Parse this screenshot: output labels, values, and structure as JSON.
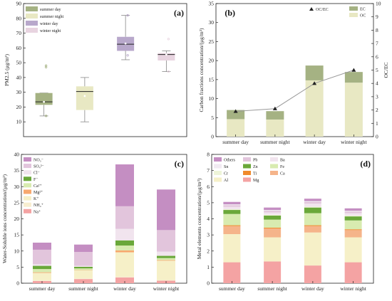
{
  "chart_data": [
    {
      "panel": "(a)",
      "type": "box",
      "ylabel": "PM2.5 (μg/m³)",
      "ylim": [
        0,
        90
      ],
      "yticks": [
        10,
        20,
        30,
        40,
        50,
        60,
        70,
        80,
        90
      ],
      "legend_position": "top-left",
      "groups": [
        {
          "name": "summer day",
          "color": "#a5b283",
          "min": 14,
          "q1": 21.5,
          "median": 23.5,
          "q3": 29.5,
          "max": 29.5,
          "mean": 23.5,
          "outliers": [
            48,
            47,
            14
          ]
        },
        {
          "name": "summer night",
          "color": "#e8e8c3",
          "min": 10,
          "q1": 18,
          "median": 30.5,
          "q3": 34,
          "max": 40,
          "mean": 27.5,
          "outliers": []
        },
        {
          "name": "winter day",
          "color": "#b8a8cb",
          "min": 52,
          "q1": 58,
          "median": 62.5,
          "q3": 67.5,
          "max": 82,
          "mean": 63,
          "outliers": [
            82,
            55
          ]
        },
        {
          "name": "winter night",
          "color": "#e8d4e0",
          "min": 44,
          "q1": 51.5,
          "median": 55.5,
          "q3": 56.5,
          "max": 58,
          "mean": 55.5,
          "outliers": [
            66,
            44
          ]
        }
      ]
    },
    {
      "panel": "(b)",
      "type": "stacked-bar-line",
      "categories": [
        "summer day",
        "summer night",
        "winter day",
        "winter night"
      ],
      "ylabel": "Carbon fractions concentration/(μg/m³)",
      "y2label": "OC/EC",
      "ylim": [
        0,
        35
      ],
      "yticks": [
        0,
        5,
        10,
        15,
        20,
        25,
        30,
        35
      ],
      "y2lim": [
        0,
        10
      ],
      "y2ticks": [
        0,
        1,
        2,
        3,
        4,
        5,
        6,
        7,
        8,
        9,
        10
      ],
      "series": [
        {
          "name": "OC",
          "color": "#e8e8c3",
          "values": [
            4.6,
            4.5,
            14.8,
            14.2
          ]
        },
        {
          "name": "EC",
          "color": "#a5b283",
          "values": [
            2.4,
            2.2,
            3.9,
            2.8
          ]
        }
      ],
      "line": {
        "name": "OC/EC",
        "values": [
          1.9,
          2.1,
          4.0,
          5.0
        ]
      },
      "legend_position": "top-right"
    },
    {
      "panel": "(c)",
      "type": "stacked-bar",
      "categories": [
        "summer day",
        "summer night",
        "winter day",
        "winter night"
      ],
      "ylabel": "Water-Soluble ions concentration/(μg/m³)",
      "ylim": [
        0,
        40
      ],
      "yticks": [
        0,
        5,
        10,
        15,
        20,
        25,
        30,
        35,
        40
      ],
      "legend_position": "top-left",
      "series": [
        {
          "name": "Na⁺",
          "color": "#f4a3a3",
          "values": [
            0.7,
            1.3,
            1.8,
            0.8
          ]
        },
        {
          "name": "NH₄⁺",
          "color": "#f8eed0",
          "values": [
            0.2,
            0.2,
            0.3,
            0.2
          ]
        },
        {
          "name": "K⁺",
          "color": "#f6f0c8",
          "values": [
            2.3,
            2.5,
            7.5,
            6.0
          ]
        },
        {
          "name": "Mg²⁺",
          "color": "#f7a86e",
          "values": [
            0.2,
            0.1,
            0.6,
            0.2
          ]
        },
        {
          "name": "Ca²⁺",
          "color": "#d8ebb0",
          "values": [
            1.0,
            0.5,
            1.5,
            0.6
          ]
        },
        {
          "name": "F⁻",
          "color": "#6aa83a",
          "values": [
            1.0,
            0.5,
            1.6,
            0.7
          ]
        },
        {
          "name": "Cl⁻",
          "color": "#f1e4ee",
          "values": [
            0.5,
            0.3,
            3.6,
            1.3
          ]
        },
        {
          "name": "SO₄²⁻",
          "color": "#e2c5dc",
          "values": [
            4.5,
            4.3,
            7.0,
            6.7
          ]
        },
        {
          "name": "NO₃⁻",
          "color": "#c48ec2",
          "values": [
            2.2,
            2.3,
            13.0,
            12.6
          ]
        }
      ]
    },
    {
      "panel": "(d)",
      "type": "stacked-bar",
      "categories": [
        "summer day",
        "summer night",
        "winter day",
        "winter night"
      ],
      "ylabel": "Metal elements concentration/(μg/m³)",
      "ylim": [
        0,
        8
      ],
      "yticks": [
        0,
        1,
        2,
        3,
        4,
        5,
        6,
        7,
        8
      ],
      "legend_position": "top",
      "series": [
        {
          "name": "Mg",
          "color": "#f4a3a3",
          "values": [
            1.3,
            1.35,
            1.1,
            1.3
          ]
        },
        {
          "name": "Al",
          "color": "#f6f0c8",
          "values": [
            1.75,
            1.5,
            2.05,
            1.55
          ]
        },
        {
          "name": "Ca",
          "color": "#f5b48a",
          "values": [
            0.5,
            0.55,
            0.4,
            0.45
          ]
        },
        {
          "name": "Ti",
          "color": "#f08a2c",
          "values": [
            0.05,
            0.05,
            0.05,
            0.05
          ]
        },
        {
          "name": "Fe",
          "color": "#d8ebb0",
          "values": [
            0.7,
            0.5,
            0.75,
            0.55
          ]
        },
        {
          "name": "Zn",
          "color": "#6aa83a",
          "values": [
            0.25,
            0.25,
            0.35,
            0.25
          ]
        },
        {
          "name": "Cr",
          "color": "#eef4d8",
          "values": [
            0.05,
            0.05,
            0.05,
            0.05
          ]
        },
        {
          "name": "Ba",
          "color": "#f1e4ee",
          "values": [
            0.15,
            0.15,
            0.2,
            0.15
          ]
        },
        {
          "name": "Pb",
          "color": "#e2c5dc",
          "values": [
            0.1,
            0.1,
            0.1,
            0.1
          ]
        },
        {
          "name": "Sn",
          "color": "#f1eaf2",
          "values": [
            0.05,
            0.05,
            0.05,
            0.05
          ]
        },
        {
          "name": "Others",
          "color": "#c48ec2",
          "values": [
            0.15,
            0.15,
            0.15,
            0.15
          ]
        }
      ]
    }
  ],
  "panel_labels": {
    "a": "(a)",
    "b": "(b)",
    "c": "(c)",
    "d": "(d)"
  }
}
